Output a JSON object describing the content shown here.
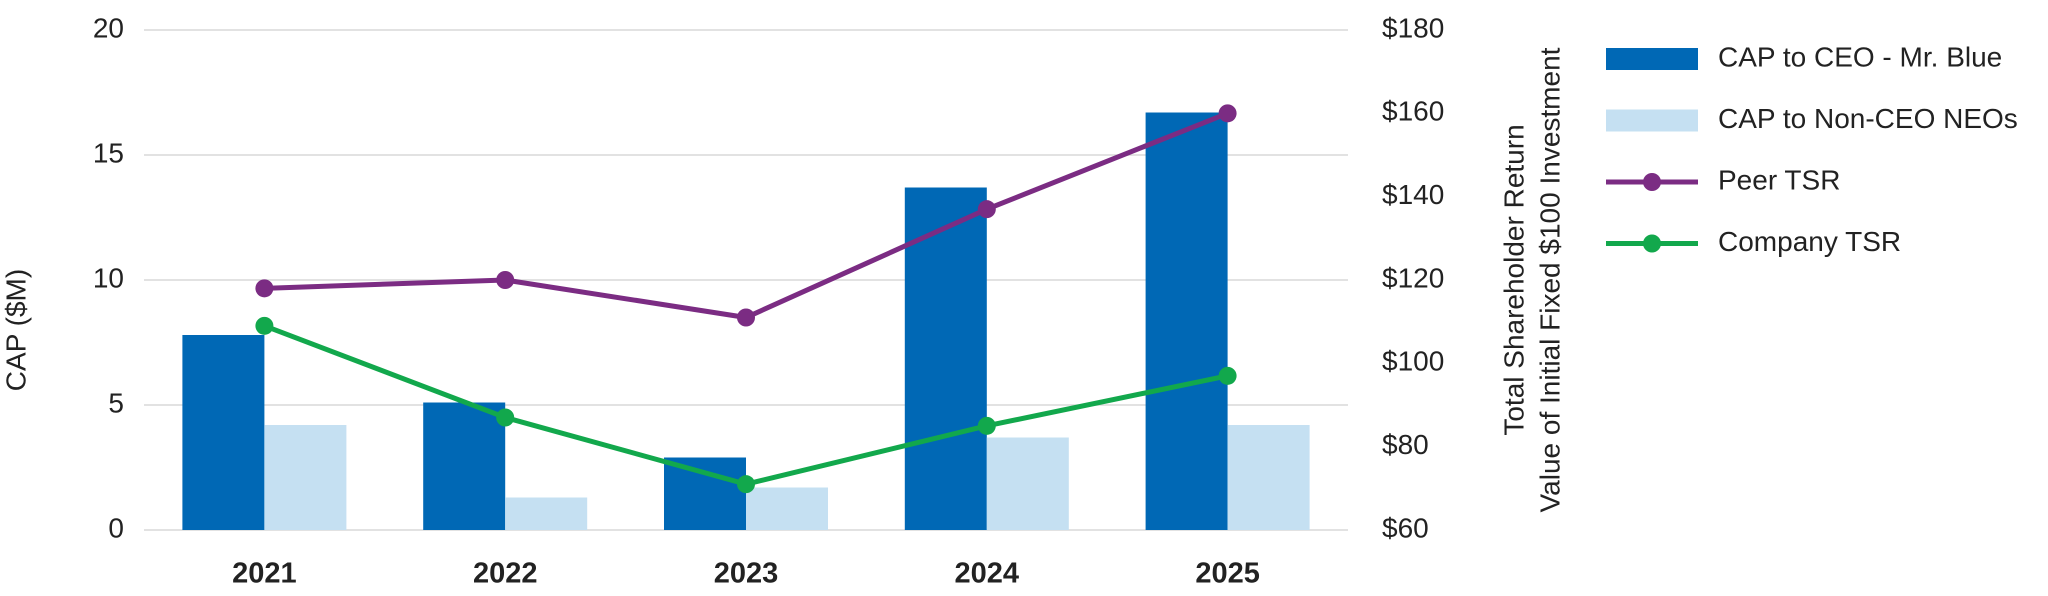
{
  "chart_data": {
    "type": "bar_line",
    "categories": [
      "2021",
      "2022",
      "2023",
      "2024",
      "2025"
    ],
    "y_label": "CAP ($M)",
    "y2_label": [
      "Total Shareholder Return",
      "Value of Initial Fixed $100 Investment"
    ],
    "ylim": [
      0,
      20
    ],
    "yticks": [
      0,
      5,
      10,
      15,
      20
    ],
    "y2lim": [
      60,
      180
    ],
    "y2ticks": [
      {
        "value": 60,
        "label": "$60"
      },
      {
        "value": 80,
        "label": "$80"
      },
      {
        "value": 100,
        "label": "$100"
      },
      {
        "value": 120,
        "label": "$120"
      },
      {
        "value": 140,
        "label": "$140"
      },
      {
        "value": 160,
        "label": "$160"
      },
      {
        "value": 180,
        "label": "$180"
      }
    ],
    "grid": true,
    "series": [
      {
        "name": "CAP to CEO - Mr. Blue",
        "type": "bar",
        "color": "#0068b5",
        "values": [
          7.8,
          5.1,
          2.9,
          13.7,
          16.7
        ]
      },
      {
        "name": "CAP to Non-CEO NEOs",
        "type": "bar",
        "color": "#c5e0f2",
        "values": [
          4.2,
          1.3,
          1.7,
          3.7,
          4.2
        ]
      },
      {
        "name": "Peer TSR",
        "type": "line",
        "axis": "y2",
        "color": "#7b2c83",
        "values": [
          118,
          120,
          111,
          137,
          160
        ]
      },
      {
        "name": "Company TSR",
        "type": "line",
        "axis": "y2",
        "color": "#12a84c",
        "values": [
          109,
          87,
          71,
          85,
          97
        ]
      }
    ]
  }
}
